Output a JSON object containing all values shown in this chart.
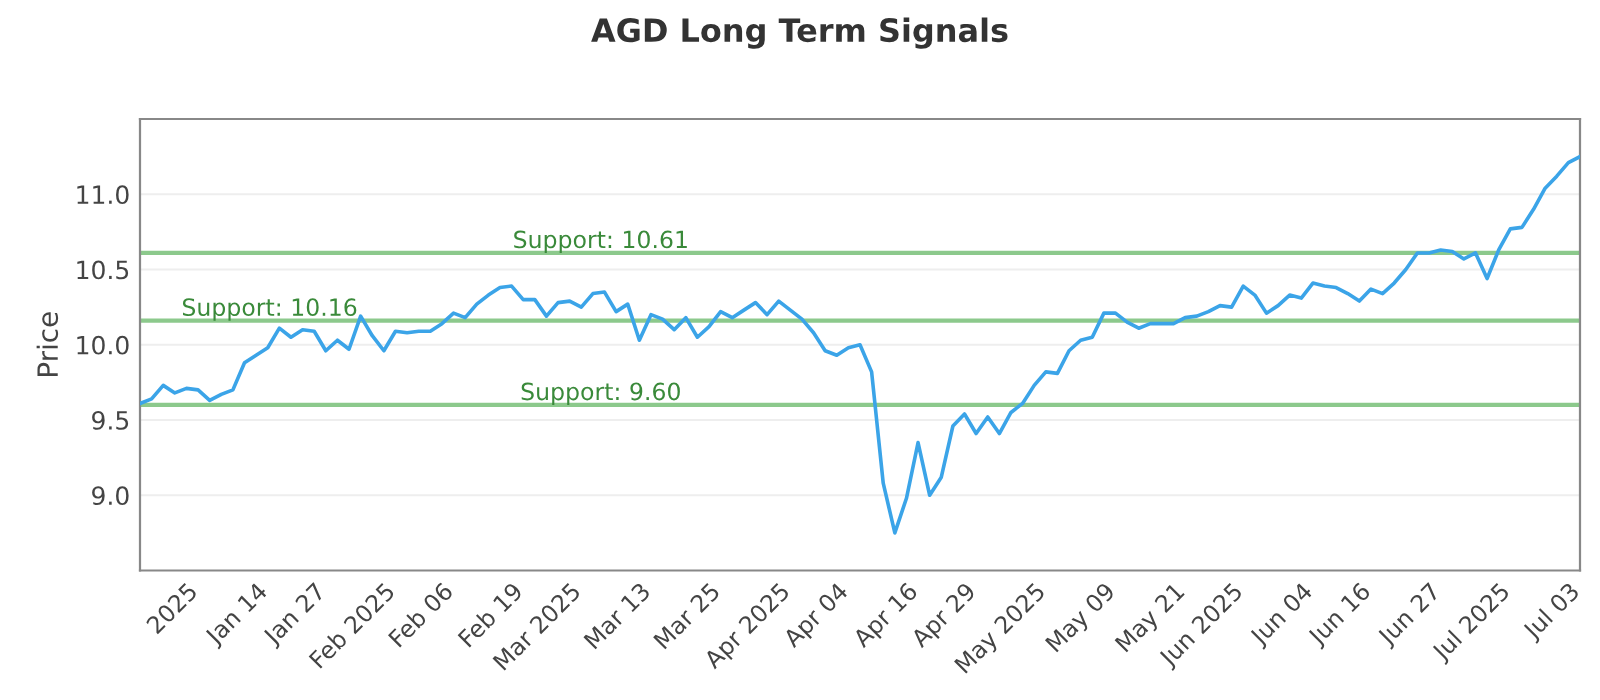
{
  "chart_data": {
    "type": "line",
    "title": "AGD Long Term Signals",
    "ylabel": "Price",
    "categories": [
      null,
      null,
      null,
      null,
      "2025",
      null,
      null,
      null,
      null,
      null,
      "Jan 14",
      null,
      null,
      null,
      null,
      "Jan 27",
      null,
      null,
      null,
      null,
      null,
      "Feb 2025",
      null,
      null,
      null,
      null,
      "Feb 06",
      null,
      null,
      null,
      null,
      null,
      "Feb 19",
      null,
      null,
      null,
      null,
      "Mar 2025",
      null,
      null,
      null,
      null,
      null,
      "Mar 13",
      null,
      null,
      null,
      null,
      null,
      "Mar 25",
      null,
      null,
      null,
      null,
      null,
      "Apr 2025",
      null,
      null,
      null,
      null,
      "Apr 04",
      null,
      null,
      null,
      null,
      null,
      "Apr 16",
      null,
      null,
      null,
      null,
      "Apr 29",
      null,
      null,
      null,
      null,
      null,
      "May 2025",
      null,
      null,
      null,
      null,
      null,
      "May 09",
      null,
      null,
      null,
      null,
      null,
      "May 21",
      null,
      null,
      null,
      null,
      "Jun 2025",
      null,
      null,
      null,
      null,
      null,
      "Jun 04",
      null,
      null,
      null,
      null,
      "Jun 16",
      null,
      null,
      null,
      null,
      null,
      "Jun 27",
      null,
      null,
      null,
      null,
      null,
      "Jul 2025",
      null,
      null,
      null,
      null,
      null,
      "Jul 03",
      null
    ],
    "series": [
      {
        "color": "#3ba4e8",
        "values": [
          9.61,
          9.64,
          9.73,
          9.68,
          9.71,
          9.7,
          9.63,
          9.67,
          9.7,
          9.88,
          9.93,
          9.98,
          10.11,
          10.05,
          10.1,
          10.09,
          9.96,
          10.03,
          9.97,
          10.19,
          10.06,
          9.96,
          10.09,
          10.08,
          10.09,
          10.09,
          10.14,
          10.21,
          10.18,
          10.27,
          10.33,
          10.38,
          10.39,
          10.3,
          10.3,
          10.19,
          10.28,
          10.29,
          10.25,
          10.34,
          10.35,
          10.22,
          10.27,
          10.03,
          10.2,
          10.17,
          10.1,
          10.18,
          10.05,
          10.12,
          10.22,
          10.18,
          10.23,
          10.28,
          10.2,
          10.29,
          10.23,
          10.17,
          10.08,
          9.96,
          9.93,
          9.98,
          10.0,
          9.82,
          9.08,
          8.75,
          8.98,
          9.35,
          9.0,
          9.12,
          9.46,
          9.54,
          9.41,
          9.52,
          9.41,
          9.55,
          9.61,
          9.73,
          9.82,
          9.81,
          9.96,
          10.03,
          10.05,
          10.21,
          10.21,
          10.15,
          10.11,
          10.14,
          10.14,
          10.14,
          10.18,
          10.19,
          10.22,
          10.26,
          10.25,
          10.39,
          10.33,
          10.21,
          10.26,
          10.33,
          10.31,
          10.41,
          10.39,
          10.38,
          10.34,
          10.29,
          10.37,
          10.34,
          10.41,
          10.5,
          10.61,
          10.61,
          10.63,
          10.62,
          10.57,
          10.61,
          10.44,
          10.63,
          10.77,
          10.78,
          10.9,
          11.04,
          11.12,
          11.21,
          11.25
        ]
      }
    ],
    "ylim": [
      8.5,
      11.5
    ],
    "yticks": [
      {
        "value": 9,
        "label": "9.0"
      },
      {
        "value": 9.5,
        "label": "9.5"
      },
      {
        "value": 10,
        "label": "10.0"
      },
      {
        "value": 10.5,
        "label": "10.5"
      },
      {
        "value": 11,
        "label": "11.0"
      }
    ],
    "grid": "y",
    "marker": "none",
    "line_style": "solid",
    "ref_lines": [
      {
        "axis": "y",
        "value": 10.61,
        "label": "Support: 10.61",
        "color": "#8cc98c"
      },
      {
        "axis": "y",
        "value": 10.16,
        "label": "Support: 10.16",
        "color": "#8cc98c"
      },
      {
        "axis": "y",
        "value": 9.6,
        "label": "Support: 9.60",
        "color": "#8cc98c"
      }
    ]
  }
}
